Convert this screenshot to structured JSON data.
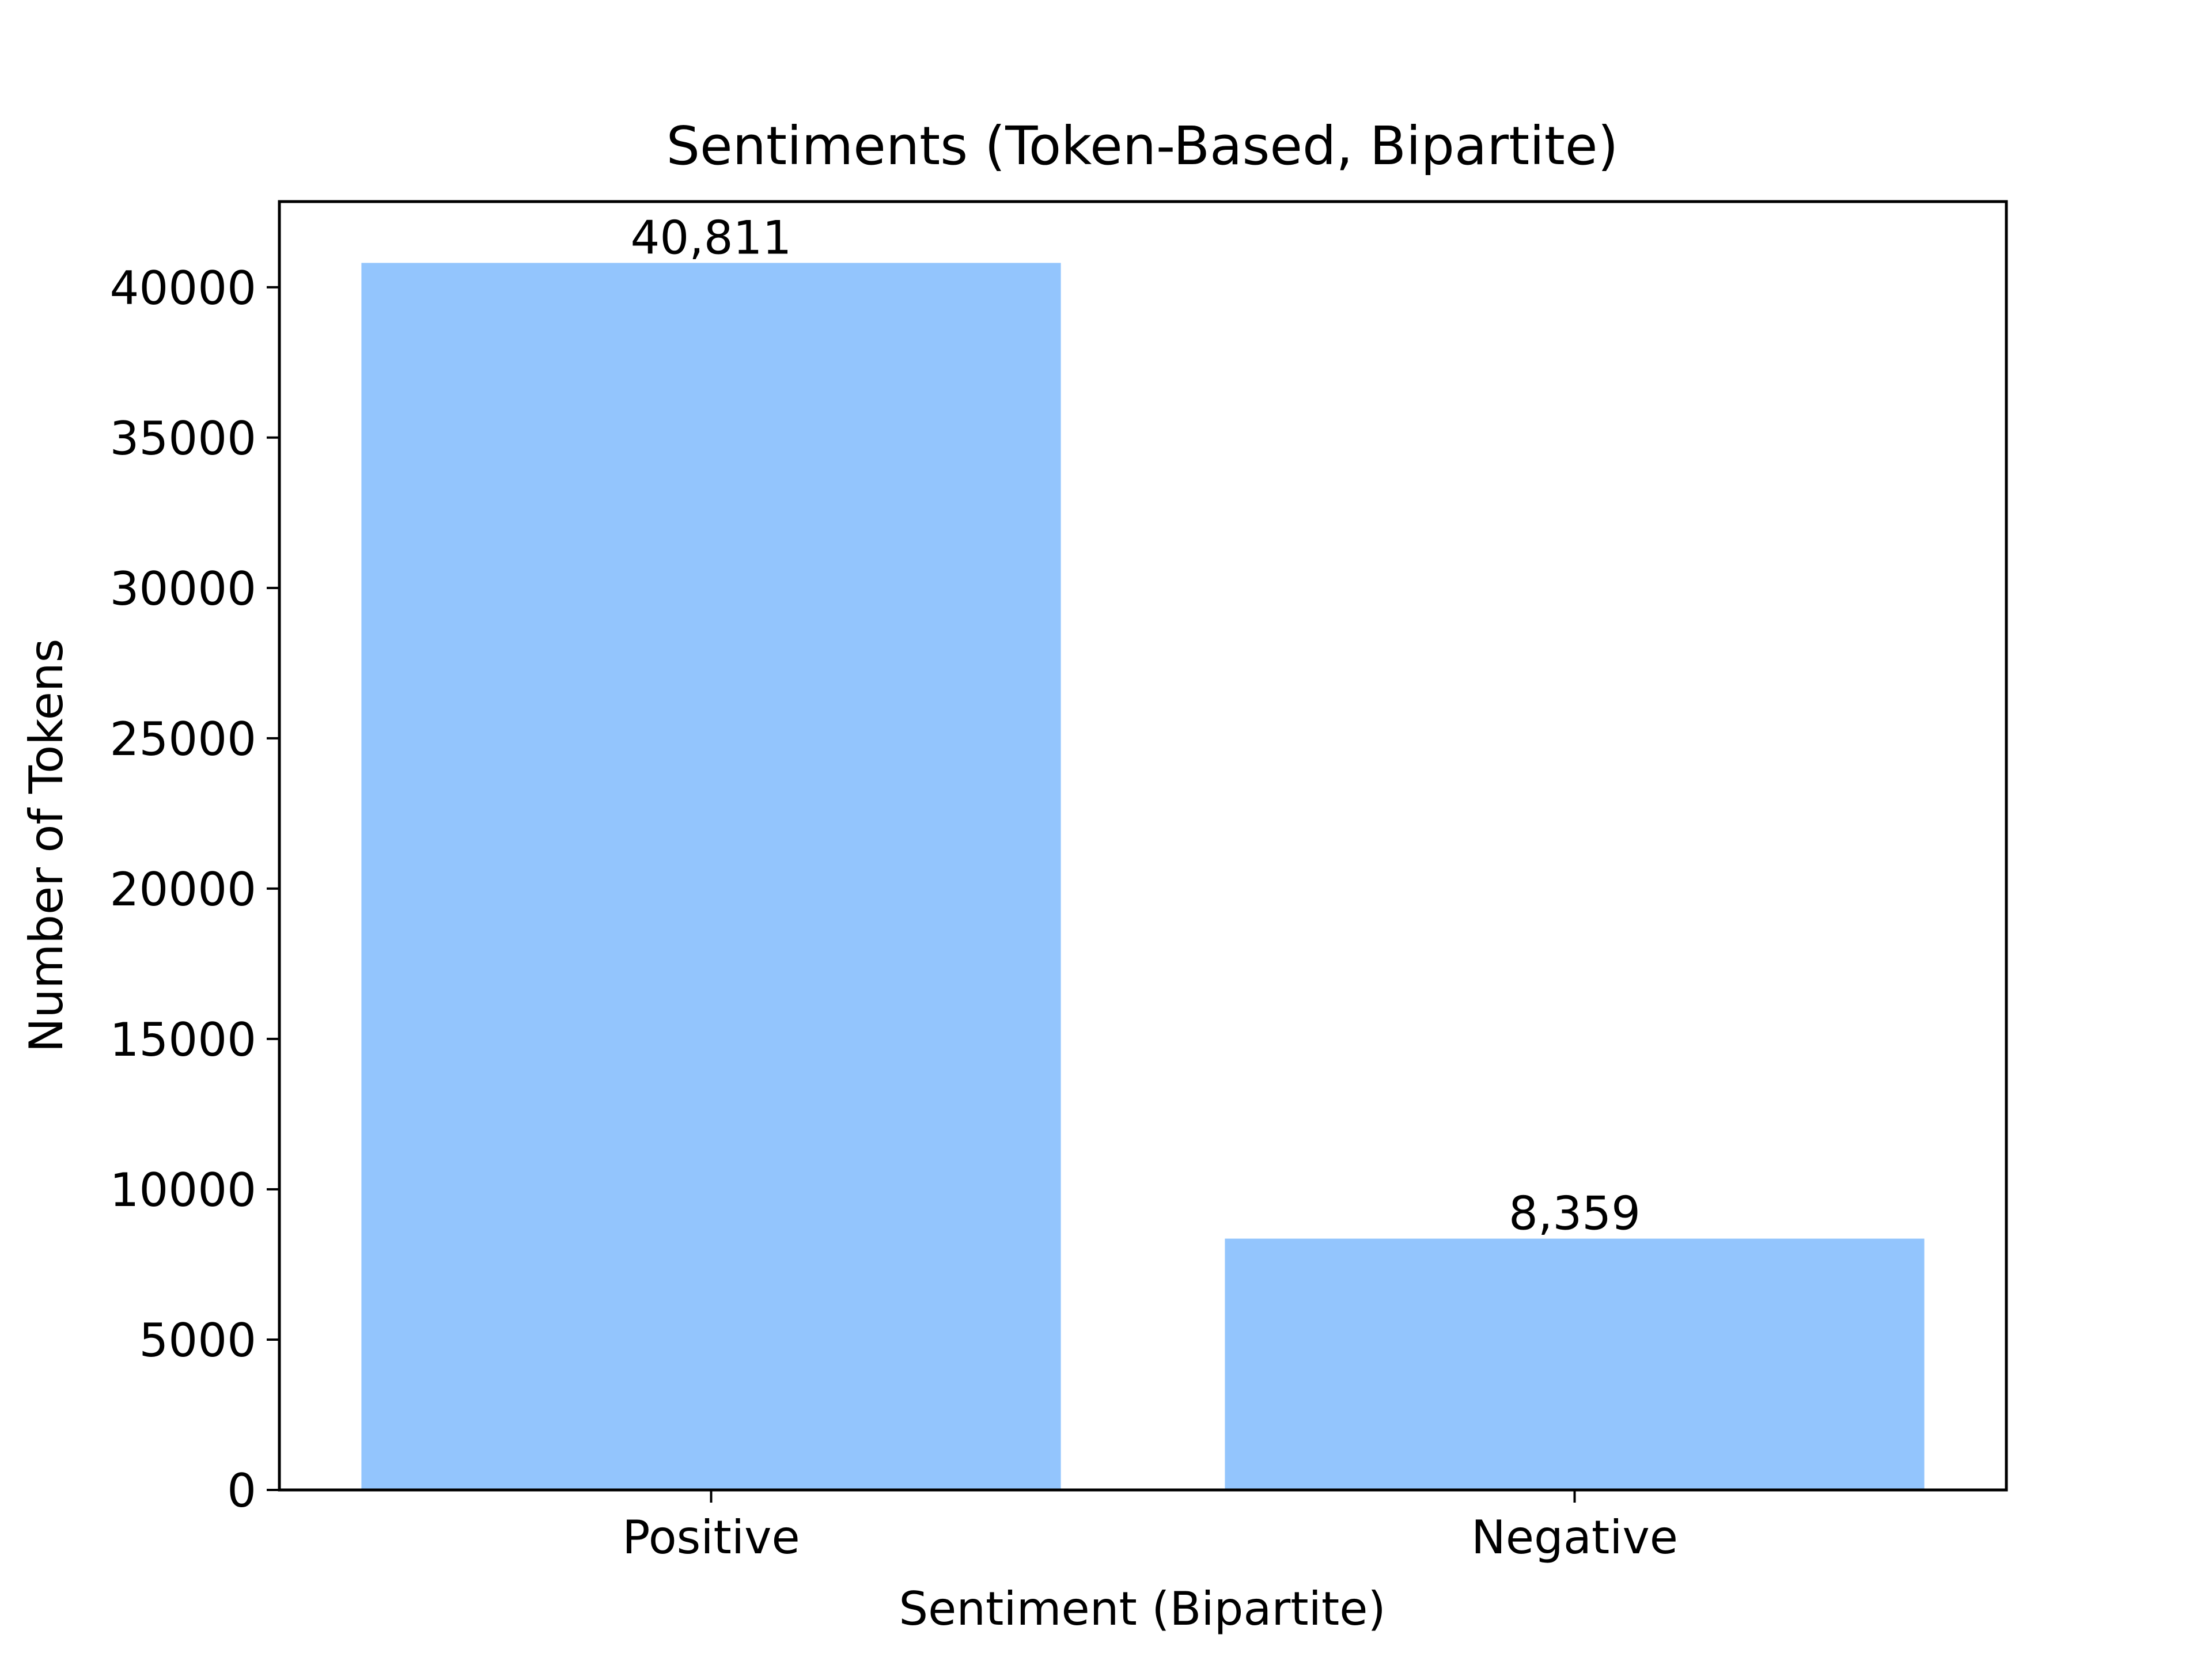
{
  "chart_data": {
    "type": "bar",
    "title": "Sentiments (Token-Based, Bipartite)",
    "xlabel": "Sentiment (Bipartite)",
    "ylabel": "Number of Tokens",
    "categories": [
      "Positive",
      "Negative"
    ],
    "values": [
      40811,
      8359
    ],
    "data_labels": [
      "40,811",
      "8,359"
    ],
    "ylim": [
      0,
      42850
    ],
    "yticks": [
      0,
      5000,
      10000,
      15000,
      20000,
      25000,
      30000,
      35000,
      40000
    ],
    "ytick_labels": [
      "0",
      "5000",
      "10000",
      "15000",
      "20000",
      "25000",
      "30000",
      "35000",
      "40000"
    ],
    "bar_color": "#93c5fd",
    "grid": false,
    "legend": "none"
  }
}
